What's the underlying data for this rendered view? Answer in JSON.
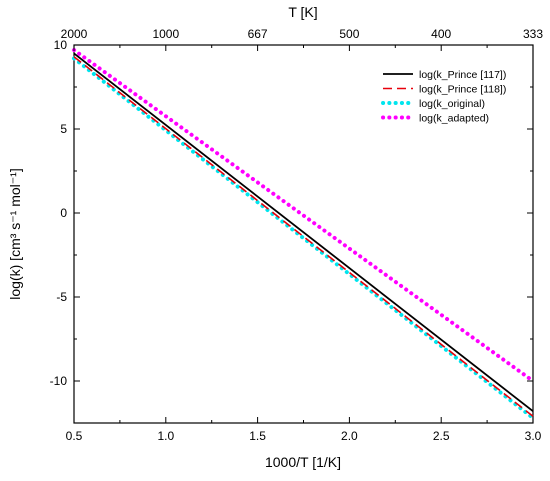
{
  "chart_data": {
    "type": "line",
    "xlabel": "1000/T [1/K]",
    "ylabel": "log(k) [cm³ s⁻¹ mol⁻¹]",
    "top_axis": {
      "label": "T [K]",
      "ticks": [
        {
          "x": 0.5,
          "label": "2000"
        },
        {
          "x": 1.0,
          "label": "1000"
        },
        {
          "x": 1.5,
          "label": "667"
        },
        {
          "x": 2.0,
          "label": "500"
        },
        {
          "x": 2.5,
          "label": "400"
        },
        {
          "x": 3.0,
          "label": "333"
        }
      ]
    },
    "xlim": [
      0.5,
      3.0
    ],
    "ylim": [
      -12.5,
      10
    ],
    "xticks": [
      "0.5",
      "1.0",
      "1.5",
      "2.0",
      "2.5",
      "3.0"
    ],
    "yticks": [
      "10",
      "5",
      "0",
      "-5",
      "-10"
    ],
    "grid": false,
    "legend_position": "top-right",
    "series": [
      {
        "name": "log(k_Prince [117])",
        "color": "#000000",
        "style": "solid",
        "x": [
          0.5,
          3.0
        ],
        "y": [
          9.5,
          -11.8
        ]
      },
      {
        "name": "log(k_Prince [118])",
        "color": "#e8000b",
        "style": "dashed",
        "x": [
          0.5,
          3.0
        ],
        "y": [
          9.3,
          -12.1
        ]
      },
      {
        "name": "log(k_original)",
        "color": "#00e5ee",
        "style": "dotted",
        "x": [
          0.5,
          3.0
        ],
        "y": [
          9.2,
          -12.2
        ]
      },
      {
        "name": "log(k_adapted)",
        "color": "#ff00ff",
        "style": "dotted",
        "x": [
          0.5,
          3.0
        ],
        "y": [
          9.7,
          -10.0
        ]
      }
    ]
  }
}
